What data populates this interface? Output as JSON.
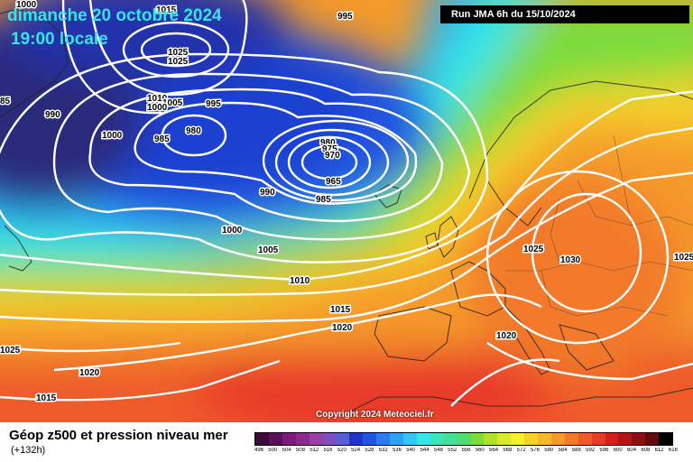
{
  "header": {
    "date": "dimanche 20 octobre 2024",
    "time": "19:00 locale",
    "run": "Run JMA 6h du 15/10/2024"
  },
  "copyright": "Copyright 2024 Meteociel.fr",
  "legend": {
    "title": "Géop z500 et pression niveau mer",
    "subtitle": "(+132h)",
    "scale_labels": [
      "496",
      "500",
      "504",
      "508",
      "512",
      "516",
      "520",
      "524",
      "528",
      "532",
      "536",
      "540",
      "544",
      "548",
      "552",
      "556",
      "560",
      "564",
      "568",
      "572",
      "576",
      "580",
      "584",
      "588",
      "592",
      "596",
      "600",
      "604",
      "608",
      "612",
      "616"
    ],
    "scale_colors": [
      "#3a0a3a",
      "#5a0f5a",
      "#7a1a7a",
      "#8b2a8b",
      "#9a3fa3",
      "#7f4fc0",
      "#5a5ed6",
      "#2233cc",
      "#1f55e0",
      "#2a7cf0",
      "#2aa3f5",
      "#33c7f5",
      "#36e6e6",
      "#3ae6b8",
      "#43e09a",
      "#4fdc70",
      "#7ddc3a",
      "#aee22a",
      "#d8eb2a",
      "#f5f02a",
      "#f5d22a",
      "#f5b82a",
      "#f59a2a",
      "#f27a2a",
      "#ee5a2a",
      "#e83a2a",
      "#d41f1f",
      "#b31414",
      "#8c0e0e",
      "#640a0a",
      "#000000"
    ]
  },
  "isobar_labels": [
    "1000",
    "1015",
    "995",
    "1025",
    "1025",
    "85",
    "990",
    "1010",
    "1005",
    "1000",
    "995",
    "1000",
    "985",
    "980",
    "980",
    "975",
    "970",
    "965",
    "990",
    "985",
    "1000",
    "1005",
    "1010",
    "1015",
    "1020",
    "1025",
    "1020",
    "1025",
    "1030",
    "1020",
    "1025",
    "1020",
    "1015"
  ],
  "colors": {
    "title_cyan": "#33e6e6",
    "isobar": "#ffffff"
  }
}
